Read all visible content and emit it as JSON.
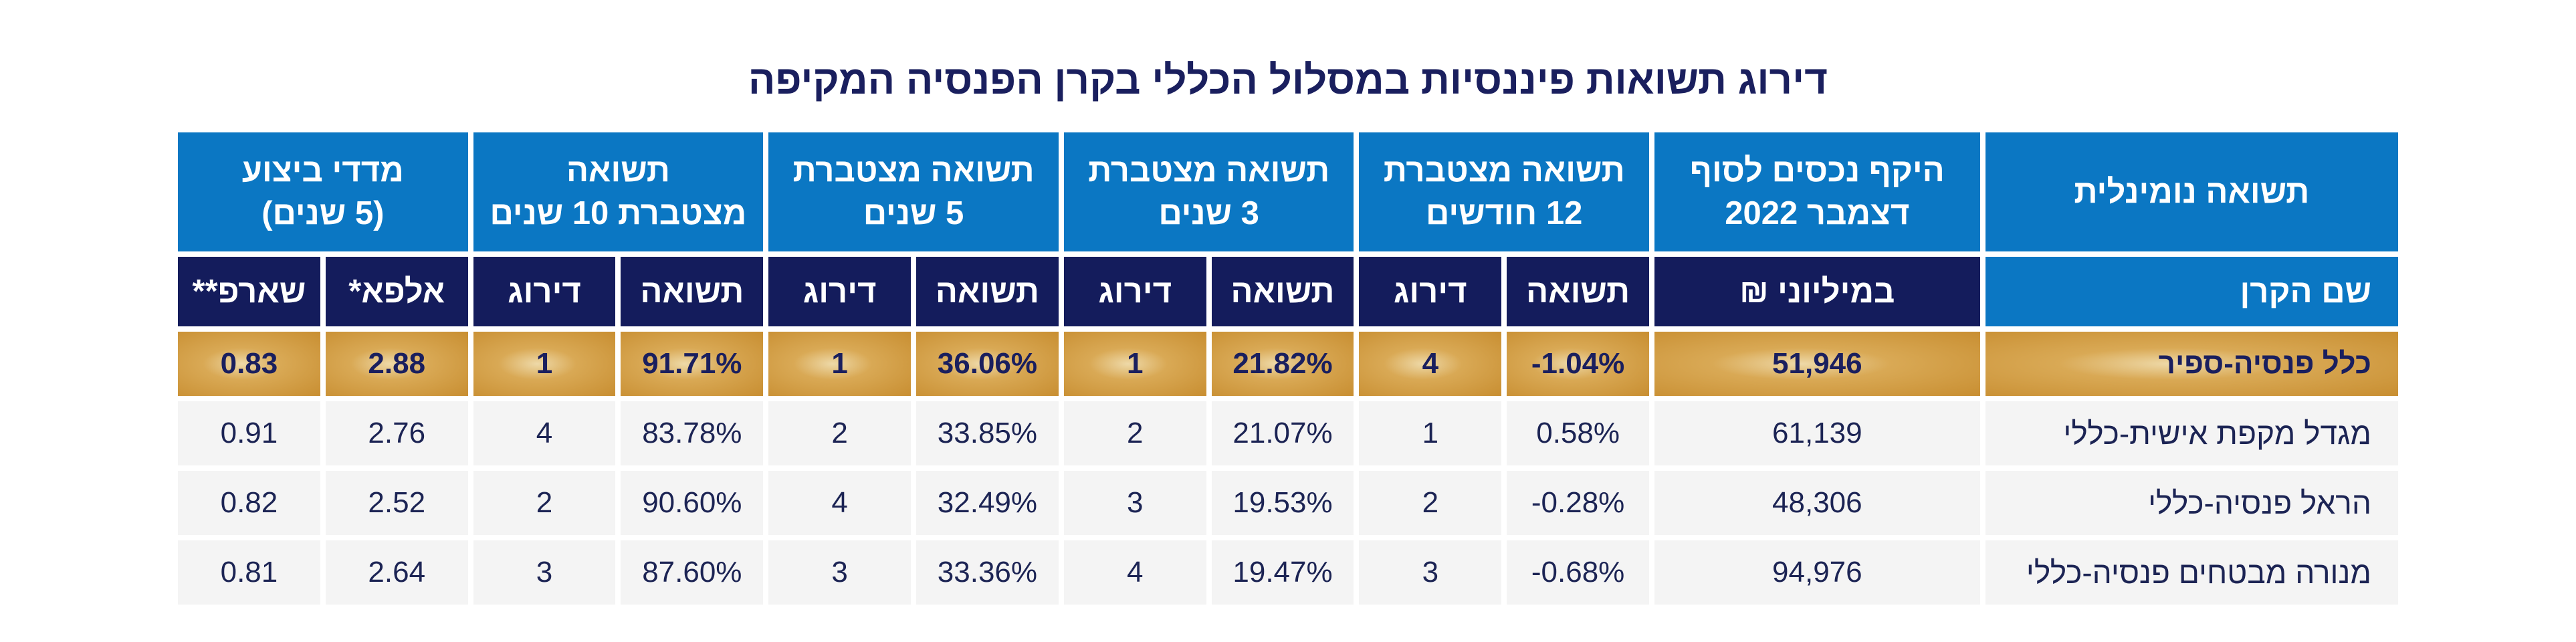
{
  "title": "דירוג תשואות פיננסיות במסלול הכללי בקרן הפנסיה המקיפה",
  "header_groups": {
    "nominal": "תשואה נומינלית",
    "assets_l1": "היקף נכסים לסוף",
    "assets_l2": "דצמבר 2022",
    "m12_l1": "תשואה מצטברת",
    "m12_l2": "12 חודשים",
    "y3_l1": "תשואה מצטברת",
    "y3_l2": "3 שנים",
    "y5_l1": "תשואה מצטברת",
    "y5_l2": "5 שנים",
    "y10_l1": "תשואה",
    "y10_l2": "מצטברת 10 שנים",
    "perf_l1": "מדדי ביצוע",
    "perf_l2": "(5 שנים)"
  },
  "sub_headers": {
    "fund_name": "שם הקרן",
    "millions": "במיליוני ₪",
    "return": "תשואה",
    "rank": "דירוג",
    "alpha": "אלפא*",
    "sharpe": "שארפ**"
  },
  "rows": [
    {
      "fund": "כלל פנסיה-ספיר",
      "assets": "51,946",
      "r12": "-1.04%",
      "k12": "4",
      "r3": "21.82%",
      "k3": "1",
      "r5": "36.06%",
      "k5": "1",
      "r10": "91.71%",
      "k10": "1",
      "alpha": "2.88",
      "sharpe": "0.83"
    },
    {
      "fund": "מגדל מקפת אישית-כללי",
      "assets": "61,139",
      "r12": "0.58%",
      "k12": "1",
      "r3": "21.07%",
      "k3": "2",
      "r5": "33.85%",
      "k5": "2",
      "r10": "83.78%",
      "k10": "4",
      "alpha": "2.76",
      "sharpe": "0.91"
    },
    {
      "fund": "הראל פנסיה-כללי",
      "assets": "48,306",
      "r12": "-0.28%",
      "k12": "2",
      "r3": "19.53%",
      "k3": "3",
      "r5": "32.49%",
      "k5": "4",
      "r10": "90.60%",
      "k10": "2",
      "alpha": "2.52",
      "sharpe": "0.82"
    },
    {
      "fund": "מנורה מבטחים פנסיה-כללי",
      "assets": "94,976",
      "r12": "-0.68%",
      "k12": "3",
      "r3": "19.47%",
      "k3": "4",
      "r5": "33.36%",
      "k5": "3",
      "r10": "87.60%",
      "k10": "3",
      "alpha": "2.64",
      "sharpe": "0.81"
    }
  ],
  "colors": {
    "header_blue": "#0b77c3",
    "header_navy": "#141c5c",
    "highlight_gold": "#c88e31",
    "row_bg": "#f4f4f4"
  }
}
